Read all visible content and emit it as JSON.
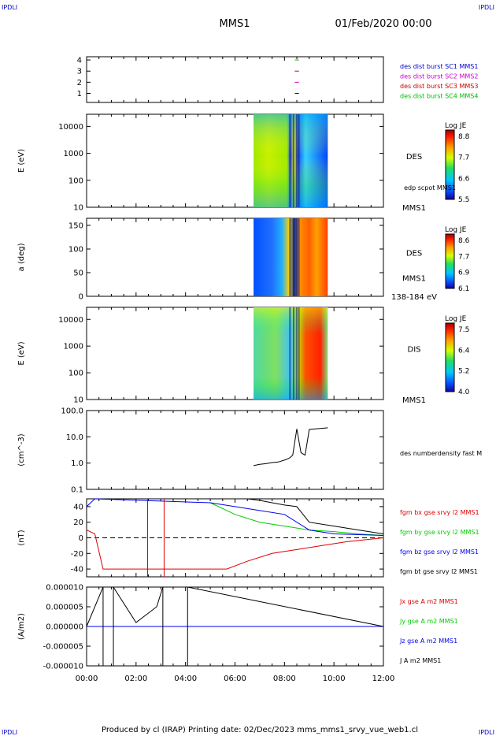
{
  "header": {
    "corner_logo": "IPDLI",
    "title": "MMS1",
    "date": "01/Feb/2020 00:00"
  },
  "footer": {
    "text": "Produced by cl (IRAP)   Printing date: 02/Dec/2023   mms_mms1_srvy_vue_web1.cl"
  },
  "colors": {
    "mms1": "#0000cc",
    "mms2": "#cc00cc",
    "mms3": "#cc0000",
    "mms4": "#00bb00",
    "bx": "#dd0000",
    "by": "#00cc00",
    "bz": "#0000ee",
    "bt": "#000000"
  },
  "x_axis": {
    "ticks": [
      "00:00",
      "02:00",
      "04:00",
      "06:00",
      "08:00",
      "10:00",
      "12:00"
    ]
  },
  "chart_data": [
    {
      "type": "line",
      "panel": "burst",
      "y_ticks": [
        "1",
        "2",
        "3",
        "4"
      ],
      "ylim": [
        0.5,
        4.5
      ],
      "legend": [
        "des dist burst SC1 MMS1",
        "des dist burst SC2 MMS2",
        "des dist burst SC3 MMS3",
        "des dist burst SC4 MMS4"
      ],
      "series": [
        {
          "name": "des dist burst SC1 MMS1",
          "y": 1,
          "x_range": [
            "08:25",
            "08:35"
          ]
        },
        {
          "name": "des dist burst SC2 MMS2",
          "y": 2,
          "x_range": [
            "08:25",
            "08:35"
          ]
        },
        {
          "name": "des dist burst SC3 MMS3",
          "y": 3,
          "x_range": [
            "08:25",
            "08:35"
          ]
        },
        {
          "name": "des dist burst SC4 MMS4",
          "y": 4,
          "x_range": [
            "08:25",
            "08:35"
          ]
        }
      ]
    },
    {
      "type": "heatmap",
      "panel": "des_energy",
      "ylabel": "E (eV)",
      "y_ticks": [
        "10",
        "100",
        "1000",
        "10000"
      ],
      "yscale": "log",
      "right_label": "DES",
      "right_sub": "edp scpot MMS1",
      "right_bottom": "MMS1",
      "colorbar": {
        "title": "Log JE",
        "ticks": [
          "8.8",
          "7.7",
          "6.6",
          "5.5"
        ]
      },
      "x_range": [
        "06:45",
        "09:45"
      ]
    },
    {
      "type": "heatmap",
      "panel": "des_pitch",
      "ylabel": "a (deg)",
      "y_ticks": [
        "0",
        "50",
        "100",
        "150"
      ],
      "right_label": "DES",
      "right_sub": "MMS1",
      "right_bottom": "138-184 eV",
      "colorbar": {
        "title": "Log JE",
        "ticks": [
          "8.6",
          "7.7",
          "6.9",
          "6.1"
        ]
      },
      "x_range": [
        "06:45",
        "09:45"
      ]
    },
    {
      "type": "heatmap",
      "panel": "dis_energy",
      "ylabel": "E (eV)",
      "y_ticks": [
        "10",
        "100",
        "1000",
        "10000"
      ],
      "yscale": "log",
      "right_label": "DIS",
      "right_bottom": "MMS1",
      "colorbar": {
        "title": "Log JE",
        "ticks": [
          "7.5",
          "6.4",
          "5.2",
          "4.0"
        ]
      },
      "x_range": [
        "06:45",
        "09:45"
      ]
    },
    {
      "type": "line",
      "panel": "density",
      "ylabel": "(cm^-3)",
      "y_ticks": [
        "0.1",
        "1.0",
        "10.0",
        "100.0"
      ],
      "yscale": "log",
      "legend": [
        "des numberdensity fast M"
      ],
      "series": [
        {
          "name": "des numberdensity fast M",
          "x": [
            "06:45",
            "07:00",
            "07:15",
            "07:30",
            "07:45",
            "08:00",
            "08:10",
            "08:15",
            "08:20",
            "08:30",
            "08:40",
            "08:50",
            "09:00",
            "09:15",
            "09:30",
            "09:45"
          ],
          "y": [
            0.8,
            0.9,
            0.95,
            1.05,
            1.1,
            1.3,
            1.5,
            1.7,
            2.0,
            20,
            2.5,
            2.0,
            19,
            20,
            21,
            22
          ]
        }
      ]
    },
    {
      "type": "line",
      "panel": "fgm",
      "ylabel": "(nT)",
      "y_ticks": [
        "-40",
        "-20",
        "0",
        "20",
        "40"
      ],
      "ylim": [
        -50,
        50
      ],
      "legend": [
        "fgm bx gse srvy l2 MMS1",
        "fgm by gse srvy l2 MMS1",
        "fgm bz gse srvy l2 MMS1",
        "fgm bt gse srvy l2 MMS1"
      ],
      "series": [
        {
          "name": "fgm bx gse srvy l2 MMS1",
          "x": [
            "00:00",
            "00:20",
            "00:40",
            "05:40",
            "06:30",
            "07:30",
            "08:30",
            "09:30",
            "10:30",
            "12:00"
          ],
          "y": [
            10,
            5,
            -40,
            -40,
            -30,
            -20,
            -15,
            -10,
            -5,
            0
          ]
        },
        {
          "name": "fgm by gse srvy l2 MMS1",
          "x": [
            "05:00",
            "06:00",
            "07:00",
            "08:00",
            "09:00",
            "10:00",
            "11:00",
            "12:00"
          ],
          "y": [
            45,
            30,
            20,
            15,
            10,
            8,
            5,
            3
          ]
        },
        {
          "name": "fgm bz gse srvy l2 MMS1",
          "x": [
            "00:00",
            "00:20",
            "05:00",
            "06:00",
            "07:00",
            "08:00",
            "09:00",
            "10:00",
            "12:00"
          ],
          "y": [
            40,
            50,
            45,
            40,
            35,
            30,
            10,
            5,
            3
          ]
        },
        {
          "name": "fgm bt gse srvy l2 MMS1",
          "x": [
            "06:30",
            "07:00",
            "07:30",
            "08:00",
            "08:30",
            "09:00",
            "10:00",
            "11:00",
            "12:00"
          ],
          "y": [
            50,
            48,
            45,
            42,
            40,
            20,
            15,
            10,
            5
          ]
        }
      ]
    },
    {
      "type": "line",
      "panel": "current",
      "ylabel": "(A/m2)",
      "y_ticks": [
        "-0.000010",
        "-0.000005",
        "0.000000",
        "0.000005",
        "0.000010"
      ],
      "ylim": [
        -1e-05,
        1e-05
      ],
      "legend": [
        "Jx gse A m2 MMS1",
        "Jy gse A m2 MMS1",
        "Jz gse A m2 MMS1",
        "J A m2 MMS1"
      ],
      "series": [
        {
          "name": "Jx gse A m2 MMS1",
          "x": [
            "00:00",
            "12:00"
          ],
          "y": [
            0,
            0
          ]
        },
        {
          "name": "Jy gse A m2 MMS1",
          "x": [
            "00:00",
            "12:00"
          ],
          "y": [
            0,
            0
          ]
        },
        {
          "name": "Jz gse A m2 MMS1",
          "x": [
            "00:00",
            "12:00"
          ],
          "y": [
            0,
            0
          ]
        },
        {
          "name": "J A m2 MMS1",
          "x": [
            "00:00",
            "00:40",
            "01:05",
            "02:00",
            "02:50",
            "03:05",
            "04:05",
            "12:00"
          ],
          "y": [
            0,
            1e-05,
            1e-05,
            1e-06,
            5e-06,
            1e-05,
            1e-05,
            0
          ]
        }
      ]
    }
  ]
}
